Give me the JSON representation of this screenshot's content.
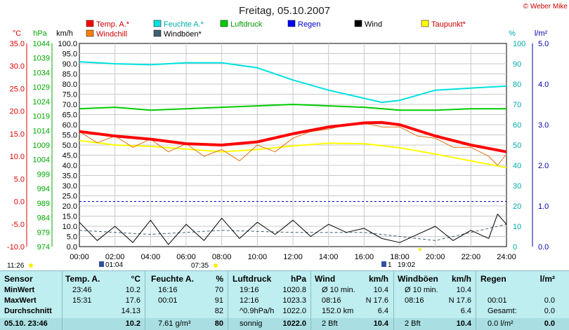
{
  "title": "Freitag, 05.10.2007",
  "copyright": "© Weber Mike",
  "axes": {
    "celsius": {
      "unit": "°C",
      "ticks": [
        "35.0",
        "30.0",
        "25.0",
        "20.0",
        "15.0",
        "10.0",
        "5.0",
        "0.0",
        "-5.0",
        "-10.0"
      ],
      "color": "#e00000"
    },
    "hpa": {
      "unit": "hPa",
      "ticks": [
        "1044",
        "1039",
        "1034",
        "1029",
        "1024",
        "1019",
        "1014",
        "1009",
        "1004",
        "999",
        "994",
        "989",
        "984",
        "979",
        "974"
      ],
      "color": "#00aa00"
    },
    "kmh": {
      "unit": "km/h",
      "ticks": [
        "100.0",
        "95.0",
        "90.0",
        "85.0",
        "80.0",
        "75.0",
        "70.0",
        "65.0",
        "60.0",
        "55.0",
        "50.0",
        "45.0",
        "40.0",
        "35.0",
        "30.0",
        "25.0",
        "20.0",
        "15.0",
        "10.0",
        "5.0",
        "0.0"
      ],
      "color": "#000000"
    },
    "percent": {
      "unit": "%",
      "ticks": [
        "100",
        "90",
        "80",
        "70",
        "60",
        "50",
        "40",
        "30",
        "20",
        "10",
        "0"
      ],
      "color": "#00aaaa"
    },
    "rain": {
      "unit": "l/m²",
      "ticks": [
        "5.0",
        "4.0",
        "3.0",
        "2.0",
        "1.0",
        "0.0"
      ],
      "color": "#0000aa"
    },
    "time": {
      "ticks": [
        "00:00",
        "02:00",
        "04:00",
        "06:00",
        "08:00",
        "10:00",
        "12:00",
        "14:00",
        "16:00",
        "18:00",
        "20:00",
        "22:00",
        "24:00"
      ]
    }
  },
  "legend": [
    {
      "label": "Temp. A.*",
      "color": "#ff0000"
    },
    {
      "label": "Windchill",
      "color": "#ff8000"
    },
    {
      "label": "Feuchte A.*",
      "color": "#00e0e0"
    },
    {
      "label": "Windböen*",
      "color": "#406070"
    },
    {
      "label": "Luftdruck",
      "color": "#00cc00"
    },
    {
      "label": "Regen",
      "color": "#0000ff"
    },
    {
      "label": "Wind",
      "color": "#000000"
    },
    {
      "label": "Taupunkt*",
      "color": "#ffff00"
    }
  ],
  "sun": {
    "rise": "07:35",
    "set": "19:02",
    "daylength": "11:26",
    "moon_rise": "01:04",
    "moon_set": "1"
  },
  "chart_data": {
    "type": "line",
    "title": "Freitag, 05.10.2007",
    "x_unit": "hours",
    "xlim": [
      0,
      24
    ],
    "series": [
      {
        "name": "Temp. A.*",
        "axis": "°C",
        "x": [
          0,
          2,
          4,
          6,
          8,
          10,
          12,
          14,
          16,
          17,
          18,
          20,
          22,
          24
        ],
        "values": [
          15.5,
          14.5,
          13.8,
          12.8,
          12.5,
          13.2,
          15.0,
          16.5,
          17.4,
          17.5,
          17.0,
          14.5,
          12.5,
          11.0
        ]
      },
      {
        "name": "Feuchte A.*",
        "axis": "%",
        "x": [
          0,
          2,
          4,
          6,
          8,
          10,
          12,
          14,
          16,
          17,
          18,
          20,
          22,
          24
        ],
        "values": [
          91,
          90,
          89.5,
          90.5,
          90.5,
          88,
          82,
          77,
          73,
          71,
          72,
          77,
          78,
          79
        ]
      },
      {
        "name": "Luftdruck",
        "axis": "hPa",
        "x": [
          0,
          2,
          4,
          6,
          8,
          10,
          12,
          14,
          16,
          18,
          20,
          22,
          24
        ],
        "values": [
          1021.5,
          1022,
          1021,
          1021.5,
          1022,
          1022.5,
          1023,
          1022.5,
          1022,
          1021,
          1021,
          1021.5,
          1021.5
        ]
      },
      {
        "name": "Taupunkt*",
        "axis": "°C",
        "x": [
          0,
          2,
          4,
          6,
          8,
          10,
          12,
          14,
          16,
          18,
          20,
          22,
          24
        ],
        "values": [
          13.5,
          12.5,
          12.2,
          11.6,
          11.0,
          11.5,
          12.3,
          12.9,
          12.8,
          11.9,
          10.5,
          9.0,
          7.5
        ]
      },
      {
        "name": "Windchill",
        "axis": "°C",
        "x": [
          0,
          1,
          2,
          3,
          4,
          5,
          6,
          7,
          8,
          9,
          10,
          11,
          12,
          13,
          14,
          15,
          16,
          17,
          18,
          19,
          20,
          21,
          22,
          23,
          23.5,
          24
        ],
        "values": [
          15.5,
          13.0,
          14.5,
          12.0,
          13.8,
          11.0,
          12.8,
          10.0,
          11.5,
          9.0,
          12.5,
          11.0,
          14.0,
          15.5,
          16.0,
          17.0,
          17.4,
          16.5,
          16.5,
          14.5,
          14.0,
          12.0,
          12.0,
          10.0,
          8.0,
          10.5
        ]
      },
      {
        "name": "Wind",
        "axis": "km/h",
        "x": [
          0,
          1,
          2,
          3,
          4,
          5,
          6,
          7,
          8,
          9,
          10,
          11,
          12,
          13,
          14,
          15,
          16,
          17,
          18,
          19,
          20,
          21,
          22,
          23,
          23.5,
          24
        ],
        "values": [
          12,
          3,
          10,
          2,
          13,
          1,
          11,
          3,
          14,
          4,
          12,
          6,
          13,
          5,
          11,
          7,
          9,
          4,
          2,
          6,
          10,
          3,
          8,
          4,
          16,
          11
        ]
      },
      {
        "name": "Windböen*",
        "axis": "km/h",
        "x": [
          0,
          4,
          8,
          12,
          16,
          20,
          24
        ],
        "values": [
          8,
          6,
          8,
          7,
          7,
          3,
          11
        ]
      }
    ],
    "rain": {
      "name": "Regen",
      "axis": "l/m²",
      "values": [
        0
      ]
    }
  },
  "table": {
    "columns": [
      {
        "title": "Sensor",
        "unit": ""
      },
      {
        "title": "Temp. A.",
        "unit": "°C"
      },
      {
        "title": "Feuchte A.",
        "unit": "%"
      },
      {
        "title": "Luftdruck",
        "unit": "hPa"
      },
      {
        "title": "Wind",
        "unit": "km/h"
      },
      {
        "title": "Windböen",
        "unit": "km/h"
      },
      {
        "title": "Regen",
        "unit": "l/m²"
      }
    ],
    "rows": [
      {
        "label": "MinWert",
        "cells": [
          [
            "23:46",
            "10.2"
          ],
          [
            "16:16",
            "70"
          ],
          [
            "19:16",
            "1020.8"
          ],
          [
            "Ø 10 min.",
            "10.4"
          ],
          [
            "Ø 10 min.",
            "10.4"
          ],
          [
            "",
            ""
          ]
        ]
      },
      {
        "label": "MaxWert",
        "cells": [
          [
            "15:31",
            "17.6"
          ],
          [
            "00:01",
            "91"
          ],
          [
            "12:16",
            "1023.3"
          ],
          [
            "08:16",
            "N 17.6"
          ],
          [
            "08:16",
            "N 17.6"
          ],
          [
            "00:01",
            "0.0"
          ]
        ]
      },
      {
        "label": "Durchschnitt",
        "cells": [
          [
            "",
            "14.13"
          ],
          [
            "",
            "82"
          ],
          [
            "^0.9hPa/h",
            "1022.0"
          ],
          [
            "152.0 km",
            "6.4"
          ],
          [
            "",
            "6.4"
          ],
          [
            "Gesamt:",
            "0.0"
          ]
        ]
      },
      {
        "label": "05.10. 23:46",
        "cells": [
          [
            "",
            "10.2"
          ],
          [
            "7.61 g/m³",
            "80"
          ],
          [
            "sonnig",
            "1022.0"
          ],
          [
            "2 Bft",
            "10.4"
          ],
          [
            "2 Bft",
            "10.4"
          ],
          [
            "0.0 l/m²",
            "0.0"
          ]
        ]
      }
    ]
  }
}
